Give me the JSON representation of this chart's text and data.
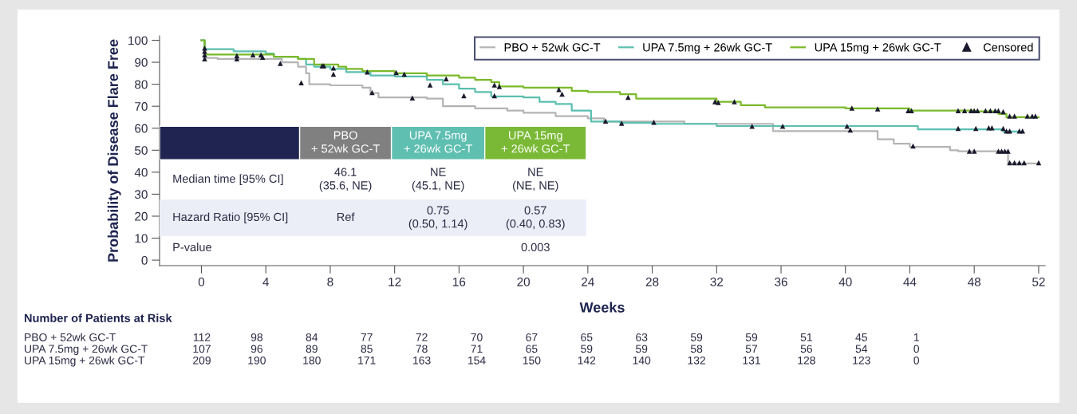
{
  "chart_data": {
    "type": "step",
    "xlabel": "Weeks",
    "ylabel": "Probability of Disease Flare Free",
    "xlim": [
      -2.6,
      52.4
    ],
    "ylim": [
      -2.5,
      102
    ],
    "xticks": [
      0,
      4,
      8,
      12,
      16,
      20,
      24,
      28,
      32,
      36,
      40,
      44,
      48,
      52
    ],
    "yticks": [
      0,
      10,
      20,
      30,
      40,
      50,
      60,
      70,
      80,
      90,
      100
    ],
    "grid": false,
    "legend": "top right",
    "series": [
      {
        "name": "PBO + 52wk GC-T",
        "color": "#b4b4b4",
        "x": [
          0,
          0.2,
          1,
          5,
          6,
          6.5,
          6.7,
          8,
          10,
          10.5,
          11,
          14,
          15,
          17,
          19,
          20,
          22,
          24,
          25,
          30,
          35.5,
          42,
          43,
          44,
          46.5,
          47,
          50.1,
          52
        ],
        "values": [
          100,
          92,
          91.5,
          90,
          88,
          85,
          80,
          79.5,
          78.5,
          76,
          74,
          73.5,
          70,
          69,
          68,
          67,
          65.5,
          64.5,
          63,
          62,
          58.7,
          55,
          53,
          51.5,
          50,
          49.5,
          44,
          44
        ]
      },
      {
        "name": "UPA 7.5mg + 26wk GC-T",
        "color": "#5bbfb0",
        "x": [
          0,
          0.2,
          2,
          4,
          4.5,
          6,
          6.5,
          7,
          8,
          9,
          10.5,
          12,
          14,
          15,
          16,
          17,
          18,
          20,
          21,
          22,
          23,
          24.2,
          26,
          28,
          32,
          44.5,
          49.8,
          51
        ],
        "values": [
          100,
          96,
          95,
          94,
          92.5,
          91.5,
          89,
          88,
          87,
          85.5,
          84,
          83.5,
          82,
          80,
          78,
          76.5,
          74.5,
          74,
          72,
          71,
          68,
          63,
          62.5,
          62,
          61,
          59.5,
          58.5,
          58.5
        ]
      },
      {
        "name": "UPA 15mg + 26wk GC-T",
        "color": "#7ab929",
        "x": [
          0,
          0.2,
          4.5,
          6,
          7,
          8.5,
          9,
          10,
          12,
          14,
          16,
          17,
          18,
          18.5,
          20,
          23,
          24,
          26,
          27,
          32,
          33.5,
          35,
          40,
          44,
          48,
          49.5,
          50,
          52
        ],
        "values": [
          100,
          93.5,
          92.5,
          91.5,
          89,
          88,
          87,
          86,
          85,
          84,
          83,
          82,
          81,
          79,
          78.5,
          77,
          76.5,
          75.5,
          73.5,
          72,
          70.5,
          69.5,
          69,
          68,
          67.7,
          66.5,
          65,
          65
        ]
      },
      {
        "name": "Censored",
        "type": "scatter",
        "marker": "triangle",
        "color": "#1a1a2e",
        "x": [
          0.2,
          0.2,
          0.2,
          0.2,
          2.2,
          2.2,
          3.2,
          3.7,
          3.8,
          4.9,
          6.2,
          7.5,
          7.6,
          8.2,
          8.2,
          10.3,
          10.6,
          12.1,
          12.6,
          13.1,
          14.2,
          15.2,
          16.3,
          18.2,
          18.5,
          18.2,
          22.2,
          22.4,
          25.1,
          26.1,
          26.5,
          28.1,
          31.9,
          32.1,
          33.1,
          34.2,
          36.1,
          40.1,
          40.3,
          40.4,
          42,
          43.9,
          44.1,
          44.2,
          47.0,
          47.4,
          47.8,
          48.0,
          48.2,
          48.7,
          49.0,
          49.3,
          49.5,
          49.8,
          50.2,
          50.5,
          51.3,
          51.6,
          51.8,
          47.0,
          48.1,
          48.9,
          49.1,
          49.8,
          50.0,
          50.2,
          50.8,
          51.0,
          47.7,
          48.0,
          49.5,
          49.7,
          49.9,
          50.1,
          50.2,
          50.5,
          50.8,
          51.1,
          52.0
        ],
        "values": [
          96.5,
          95,
          93.4,
          91.6,
          93,
          91.6,
          93.4,
          93.4,
          92.3,
          89.5,
          80.7,
          88.4,
          88.4,
          87.4,
          84.6,
          85.6,
          76.2,
          85.3,
          84.6,
          73.8,
          79.7,
          82.5,
          74.8,
          79.7,
          79,
          74.8,
          77.6,
          75.5,
          63.3,
          62.3,
          74.1,
          62.7,
          72.1,
          71.7,
          72.1,
          60.9,
          60.9,
          60.9,
          59.2,
          69.2,
          68.8,
          68,
          68,
          51.9,
          68,
          68,
          68,
          68,
          68,
          68,
          68,
          68,
          68,
          67.5,
          65.5,
          65.5,
          65.5,
          65.5,
          65.5,
          59.9,
          59.9,
          60.2,
          60.2,
          59.9,
          58.7,
          58.7,
          58.7,
          58.7,
          49.6,
          49.6,
          49.6,
          49.6,
          49.6,
          49.6,
          44.3,
          44.3,
          44.3,
          44.3,
          44.3
        ]
      }
    ],
    "annotations": [
      "Number of Patients at Risk",
      "PBO + 52wk GC-T",
      "112",
      "98",
      "84",
      "77",
      "72",
      "70",
      "67",
      "65",
      "63",
      "59",
      "59",
      "51",
      "45",
      "1",
      "UPA 7.5mg + 26wk GC-T",
      "107",
      "96",
      "89",
      "85",
      "78",
      "71",
      "65",
      "59",
      "59",
      "58",
      "57",
      "56",
      "54",
      "0",
      "UPA 15mg + 26wk GC-T",
      "209",
      "190",
      "180",
      "171",
      "163",
      "154",
      "150",
      "142",
      "140",
      "132",
      "131",
      "128",
      "123",
      "0",
      "PBO\n+ 52wk GC-T",
      "UPA 7.5mg\n+ 26wk GC-T",
      "UPA 15mg\n+ 26wk GC-T",
      "Median time [95% CI]",
      "46.1\n(35.6, NE)",
      "NE\n(45.1, NE)",
      "NE\n(NE, NE)",
      "Hazard Ratio [95% CI]",
      "Ref",
      "0.75\n(0.50, 1.14)",
      "0.57\n(0.40, 0.83)",
      "P-value",
      "0.003"
    ]
  }
}
